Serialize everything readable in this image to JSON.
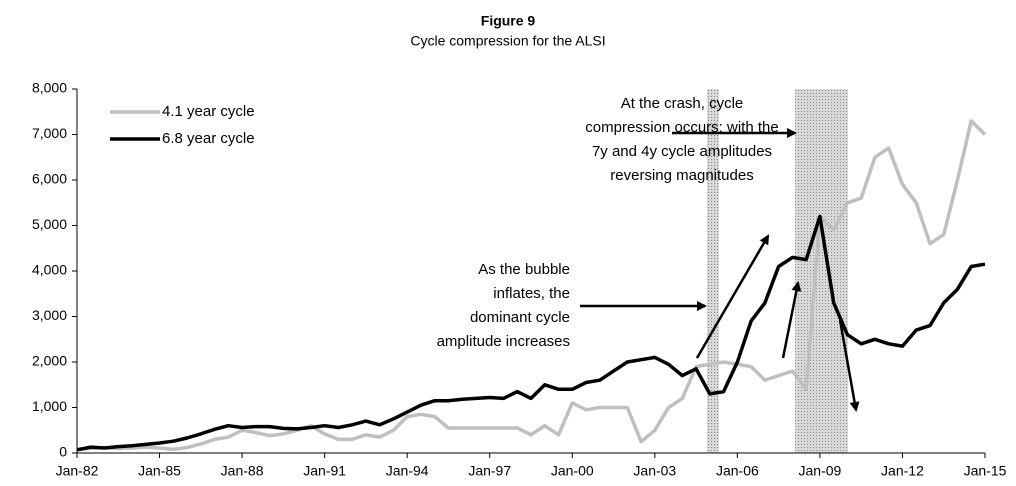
{
  "chart_data": {
    "type": "line",
    "title": "Figure 9",
    "subtitle": "Cycle compression for the ALSI",
    "categories": [
      "Jan-82",
      null,
      null,
      null,
      null,
      null,
      "Jan-85",
      null,
      null,
      null,
      null,
      null,
      "Jan-88",
      null,
      null,
      null,
      null,
      null,
      "Jan-91",
      null,
      null,
      null,
      null,
      null,
      "Jan-94",
      null,
      null,
      null,
      null,
      null,
      "Jan-97",
      null,
      null,
      null,
      null,
      null,
      "Jan-00",
      null,
      null,
      null,
      null,
      null,
      "Jan-03",
      null,
      null,
      null,
      null,
      null,
      "Jan-06",
      null,
      null,
      null,
      null,
      null,
      "Jan-09",
      null,
      null,
      null,
      null,
      null,
      "Jan-12",
      null,
      null,
      null,
      null,
      null,
      "Jan-15"
    ],
    "series": [
      {
        "name": "4.1 year cycle",
        "color": "#bfbfbf",
        "values": [
          70,
          100,
          120,
          100,
          110,
          130,
          110,
          80,
          120,
          200,
          300,
          350,
          500,
          450,
          380,
          420,
          500,
          600,
          420,
          300,
          300,
          400,
          350,
          500,
          800,
          850,
          800,
          550,
          550,
          550,
          550,
          550,
          550,
          400,
          600,
          400,
          1100,
          950,
          1000,
          1000,
          1000,
          250,
          500,
          1000,
          1200,
          1900,
          1950,
          2000,
          1950,
          1900,
          1600,
          1700,
          1800,
          1400,
          5200,
          4900,
          5500,
          5600,
          6500,
          6700,
          5900,
          5500,
          4600,
          4800,
          6000,
          7300,
          7000
        ]
      },
      {
        "name": "6.8 year cycle",
        "color": "#000000",
        "values": [
          70,
          130,
          110,
          140,
          160,
          190,
          220,
          260,
          330,
          420,
          520,
          600,
          560,
          580,
          580,
          540,
          530,
          560,
          600,
          560,
          620,
          700,
          620,
          750,
          900,
          1050,
          1150,
          1150,
          1180,
          1200,
          1220,
          1200,
          1350,
          1200,
          1500,
          1400,
          1400,
          1550,
          1600,
          1800,
          2000,
          2050,
          2100,
          1950,
          1700,
          1850,
          1300,
          1350,
          2000,
          2900,
          3300,
          4100,
          4300,
          4250,
          5200,
          3300,
          2600,
          2400,
          2500,
          2400,
          2350,
          2700,
          2800,
          3300,
          3600,
          4100,
          4150
        ]
      }
    ],
    "ylim": [
      0,
      8000
    ],
    "yticks": [
      0,
      {
        "value": 1000,
        "label": "1,000"
      },
      {
        "value": 2000,
        "label": "2,000"
      },
      {
        "value": 3000,
        "label": "3,000"
      },
      {
        "value": 4000,
        "label": "4,000"
      },
      {
        "value": 5000,
        "label": "5,000"
      },
      {
        "value": 6000,
        "label": "6,000"
      },
      {
        "value": 7000,
        "label": "7,000"
      },
      {
        "value": 8000,
        "label": "8,000"
      }
    ],
    "legend": "top-left",
    "annotations": [
      [
        "At the crash, cycle",
        "compression occurs: with the",
        "7y and 4y cycle amplitudes",
        "reversing magnitudes"
      ],
      [
        "As the bubble",
        "inflates, the",
        "dominant cycle",
        "amplitude increases"
      ]
    ]
  }
}
